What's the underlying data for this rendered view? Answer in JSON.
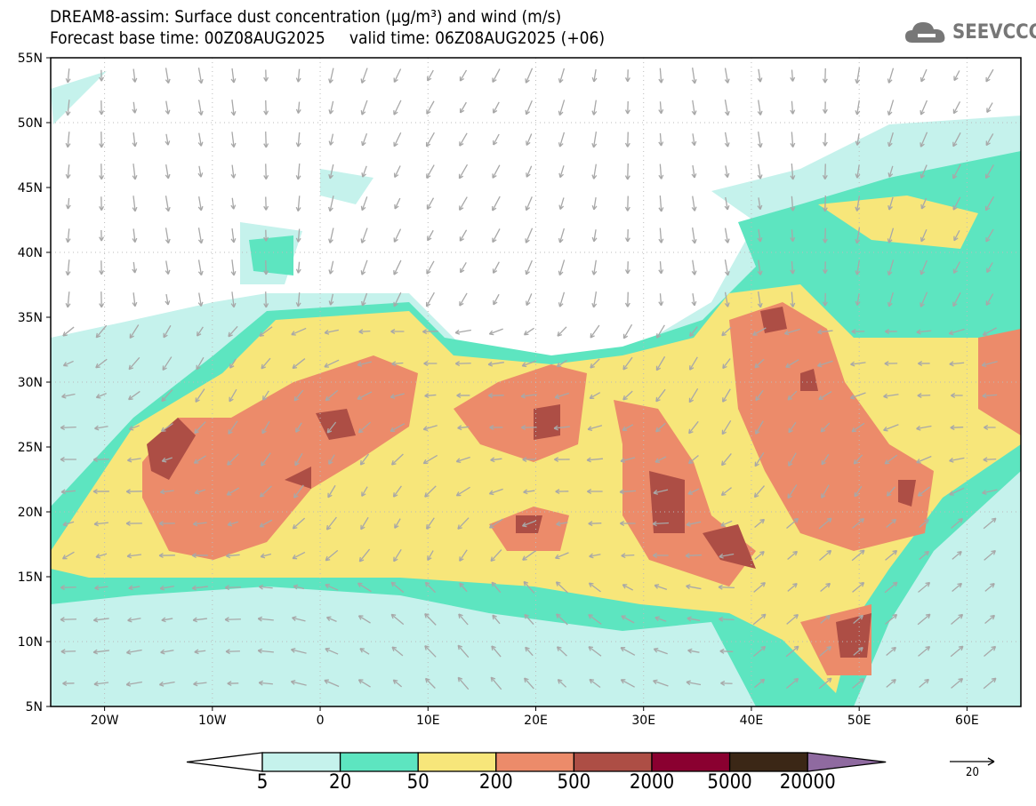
{
  "header": {
    "title_line1": "DREAM8-assim: Surface dust concentration (µg/m³) and wind (m/s)",
    "title_line2": "Forecast base time: 00Z08AUG2025     valid time: 06Z08AUG2025 (+06)",
    "logo_text": "SEEVCCC"
  },
  "map": {
    "lat_labels": [
      "55N",
      "50N",
      "45N",
      "40N",
      "35N",
      "30N",
      "25N",
      "20N",
      "15N",
      "10N",
      "5N"
    ],
    "lon_labels": [
      "20W",
      "10W",
      "0",
      "10E",
      "20E",
      "30E",
      "40E",
      "50E",
      "60E"
    ],
    "lon_range": [
      -25,
      65
    ],
    "lat_range": [
      5,
      55
    ],
    "wind_color": "#a8a8a8"
  },
  "colorbar": {
    "labels": [
      "5",
      "20",
      "50",
      "200",
      "500",
      "2000",
      "5000",
      "20000"
    ],
    "colors": [
      "#ffffff",
      "#c5f2ec",
      "#5de5c0",
      "#f7e67a",
      "#ec8b6a",
      "#ad4e45",
      "#8a0030",
      "#3b2716",
      "#8f6aa0"
    ],
    "wind_reference": "20"
  }
}
